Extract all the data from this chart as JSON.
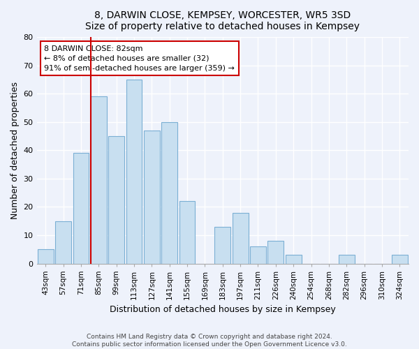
{
  "title": "8, DARWIN CLOSE, KEMPSEY, WORCESTER, WR5 3SD",
  "subtitle": "Size of property relative to detached houses in Kempsey",
  "xlabel": "Distribution of detached houses by size in Kempsey",
  "ylabel": "Number of detached properties",
  "bar_labels": [
    "43sqm",
    "57sqm",
    "71sqm",
    "85sqm",
    "99sqm",
    "113sqm",
    "127sqm",
    "141sqm",
    "155sqm",
    "169sqm",
    "183sqm",
    "197sqm",
    "211sqm",
    "226sqm",
    "240sqm",
    "254sqm",
    "268sqm",
    "282sqm",
    "296sqm",
    "310sqm",
    "324sqm"
  ],
  "bar_values": [
    5,
    15,
    39,
    59,
    45,
    65,
    47,
    50,
    22,
    0,
    13,
    18,
    6,
    8,
    3,
    0,
    0,
    3,
    0,
    0,
    3
  ],
  "bar_color": "#c8dff0",
  "bar_edge_color": "#7bafd4",
  "vline_x_index": 3,
  "vline_color": "#cc0000",
  "annotation_line1": "8 DARWIN CLOSE: 82sqm",
  "annotation_line2": "← 8% of detached houses are smaller (32)",
  "annotation_line3": "91% of semi-detached houses are larger (359) →",
  "annotation_box_color": "#ffffff",
  "annotation_box_edge": "#cc0000",
  "ylim": [
    0,
    80
  ],
  "yticks": [
    0,
    10,
    20,
    30,
    40,
    50,
    60,
    70,
    80
  ],
  "footer_text": "Contains HM Land Registry data © Crown copyright and database right 2024.\nContains public sector information licensed under the Open Government Licence v3.0.",
  "bg_color": "#eef2fb",
  "plot_bg_color": "#eef2fb",
  "grid_color": "#ffffff"
}
